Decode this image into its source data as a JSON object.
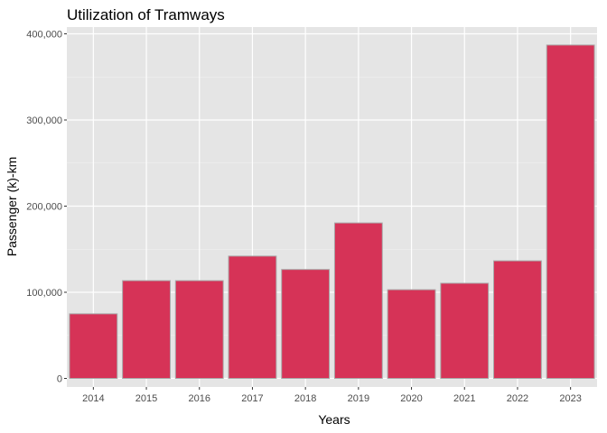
{
  "chart_data": {
    "type": "bar",
    "title": "Utilization of Tramways",
    "xlabel": "Years",
    "ylabel": "Passenger (k)-km",
    "categories": [
      "2014",
      "2015",
      "2016",
      "2017",
      "2018",
      "2019",
      "2020",
      "2021",
      "2022",
      "2023"
    ],
    "values": [
      75000,
      113500,
      113500,
      142000,
      126500,
      180500,
      103000,
      110500,
      136500,
      387000
    ],
    "ylim": [
      0,
      400000
    ],
    "yticks": [
      0,
      100000,
      200000,
      300000,
      400000
    ],
    "ytick_labels": [
      "0",
      "100,000",
      "200,000",
      "300,000",
      "400,000"
    ],
    "grid": true,
    "colors": {
      "bar_fill": "#D63357",
      "bar_outline": "#A9A9A9",
      "panel_background": "#E5E5E5",
      "grid_major": "#FFFFFF",
      "grid_minor": "#F2F2F2"
    }
  }
}
